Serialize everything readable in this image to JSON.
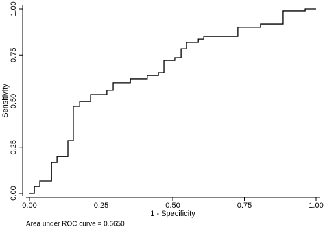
{
  "chart_data": {
    "type": "line",
    "x_label": "1 - Specificity",
    "y_label": "Sensitivity",
    "note": "Area under ROC curve = 0.6650",
    "color": "#000000",
    "xlim": [
      0,
      1
    ],
    "ylim": [
      0,
      1
    ],
    "xticks": [
      {
        "value": 0,
        "label": "0.00"
      },
      {
        "value": 0.25,
        "label": "0.25"
      },
      {
        "value": 0.5,
        "label": "0.50"
      },
      {
        "value": 0.75,
        "label": "0.75"
      },
      {
        "value": 1,
        "label": "1.00"
      }
    ],
    "yticks": [
      {
        "value": 0,
        "label": "0.00"
      },
      {
        "value": 0.25,
        "label": "0.25"
      },
      {
        "value": 0.5,
        "label": "0.50"
      },
      {
        "value": 0.75,
        "label": "0.75"
      },
      {
        "value": 1,
        "label": "1.00"
      }
    ],
    "x": [
      0,
      0.017,
      0.017,
      0.036,
      0.036,
      0.077,
      0.077,
      0.096,
      0.096,
      0.134,
      0.134,
      0.153,
      0.153,
      0.175,
      0.175,
      0.213,
      0.213,
      0.27,
      0.27,
      0.292,
      0.292,
      0.352,
      0.352,
      0.411,
      0.411,
      0.45,
      0.45,
      0.469,
      0.469,
      0.507,
      0.507,
      0.529,
      0.529,
      0.548,
      0.548,
      0.589,
      0.589,
      0.608,
      0.608,
      0.727,
      0.727,
      0.806,
      0.806,
      0.885,
      0.885,
      0.962,
      0.962,
      1
    ],
    "values": [
      0,
      0,
      0.037,
      0.037,
      0.067,
      0.067,
      0.167,
      0.167,
      0.2,
      0.2,
      0.286,
      0.286,
      0.472,
      0.472,
      0.498,
      0.498,
      0.535,
      0.535,
      0.558,
      0.558,
      0.599,
      0.599,
      0.621,
      0.621,
      0.639,
      0.639,
      0.654,
      0.654,
      0.721,
      0.721,
      0.736,
      0.736,
      0.784,
      0.784,
      0.818,
      0.818,
      0.836,
      0.836,
      0.851,
      0.851,
      0.9,
      0.9,
      0.918,
      0.918,
      0.989,
      0.989,
      1,
      1
    ]
  }
}
